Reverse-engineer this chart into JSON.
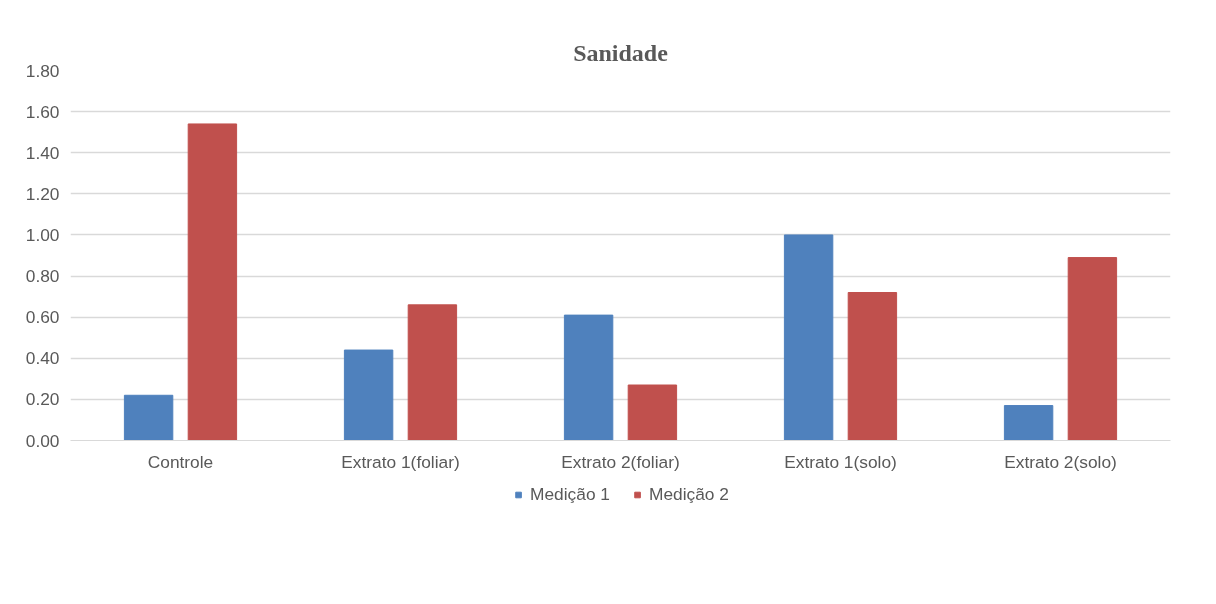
{
  "chart_data": {
    "type": "bar",
    "title": "Sanidade",
    "categories": [
      "Controle",
      "Extrato 1(foliar)",
      "Extrato 2(foliar)",
      "Extrato 1(solo)",
      "Extrato 2(solo)"
    ],
    "series": [
      {
        "name": "Medição 1",
        "color": "#4f81bd",
        "values": [
          0.22,
          0.44,
          0.61,
          1.0,
          0.17
        ]
      },
      {
        "name": "Medição 2",
        "color": "#c0504d",
        "values": [
          1.54,
          0.66,
          0.27,
          0.72,
          0.89
        ]
      }
    ],
    "ylim": [
      0,
      1.8
    ],
    "yticks": [
      {
        "value": 0,
        "label": "0.00"
      },
      {
        "value": 0.2,
        "label": "0.20"
      },
      {
        "value": 0.4,
        "label": "0.40"
      },
      {
        "value": 0.6,
        "label": "0.60"
      },
      {
        "value": 0.8,
        "label": "0.80"
      },
      {
        "value": 1.0,
        "label": "1.00"
      },
      {
        "value": 1.2,
        "label": "1.20"
      },
      {
        "value": 1.4,
        "label": "1.40"
      },
      {
        "value": 1.6,
        "label": "1.60"
      },
      {
        "value": 1.8,
        "label": "1.80"
      }
    ],
    "grid": "y",
    "legend": "bottom"
  }
}
